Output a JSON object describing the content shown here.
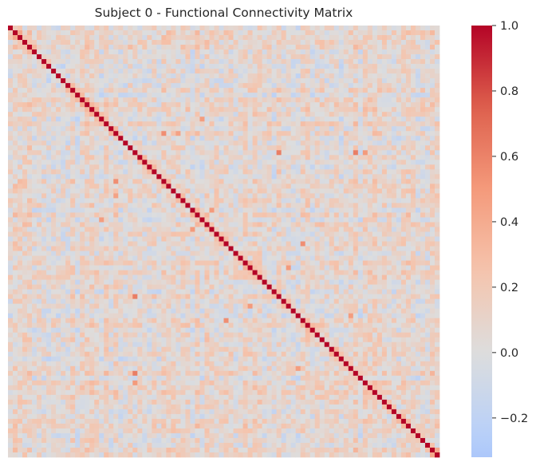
{
  "chart_data": {
    "type": "heatmap",
    "title": "Subject 0 - Functional Connectivity Matrix",
    "subject": "Subject 0",
    "n": 90,
    "diagonal_value": 1.0,
    "value_range": [
      -0.32,
      1.0
    ],
    "colormap": "coolwarm",
    "colormap_center": 0.0,
    "background_mean": 0.06,
    "xlabel": "",
    "ylabel": "",
    "x_tick_labels": [],
    "y_tick_labels": [],
    "strong_off_diagonal_cells": [
      {
        "row": 26,
        "col": 56,
        "value": 0.62
      },
      {
        "row": 26,
        "col": 72,
        "value": 0.62
      },
      {
        "row": 56,
        "col": 26,
        "value": 0.62
      },
      {
        "row": 72,
        "col": 26,
        "value": 0.62
      },
      {
        "row": 32,
        "col": 22,
        "value": 0.55
      },
      {
        "row": 22,
        "col": 32,
        "value": 0.55
      },
      {
        "row": 50,
        "col": 58,
        "value": 0.5
      },
      {
        "row": 58,
        "col": 50,
        "value": 0.5
      },
      {
        "row": 61,
        "col": 45,
        "value": 0.55
      },
      {
        "row": 45,
        "col": 61,
        "value": 0.55
      },
      {
        "row": 42,
        "col": 38,
        "value": 0.5
      },
      {
        "row": 38,
        "col": 42,
        "value": 0.5
      },
      {
        "row": 19,
        "col": 40,
        "value": 0.48
      },
      {
        "row": 40,
        "col": 19,
        "value": 0.48
      },
      {
        "row": 74,
        "col": 26,
        "value": 0.5
      },
      {
        "row": 26,
        "col": 74,
        "value": 0.5
      },
      {
        "row": 71,
        "col": 60,
        "value": 0.48
      },
      {
        "row": 60,
        "col": 71,
        "value": 0.48
      },
      {
        "row": 35,
        "col": 22,
        "value": 0.45
      },
      {
        "row": 22,
        "col": 35,
        "value": 0.45
      }
    ],
    "colorbar": {
      "ticks": [
        1.0,
        0.8,
        0.6,
        0.4,
        0.2,
        0.0,
        -0.2
      ],
      "tick_labels": [
        "1.0",
        "0.8",
        "0.6",
        "0.4",
        "0.2",
        "0.0",
        "−0.2"
      ]
    }
  }
}
